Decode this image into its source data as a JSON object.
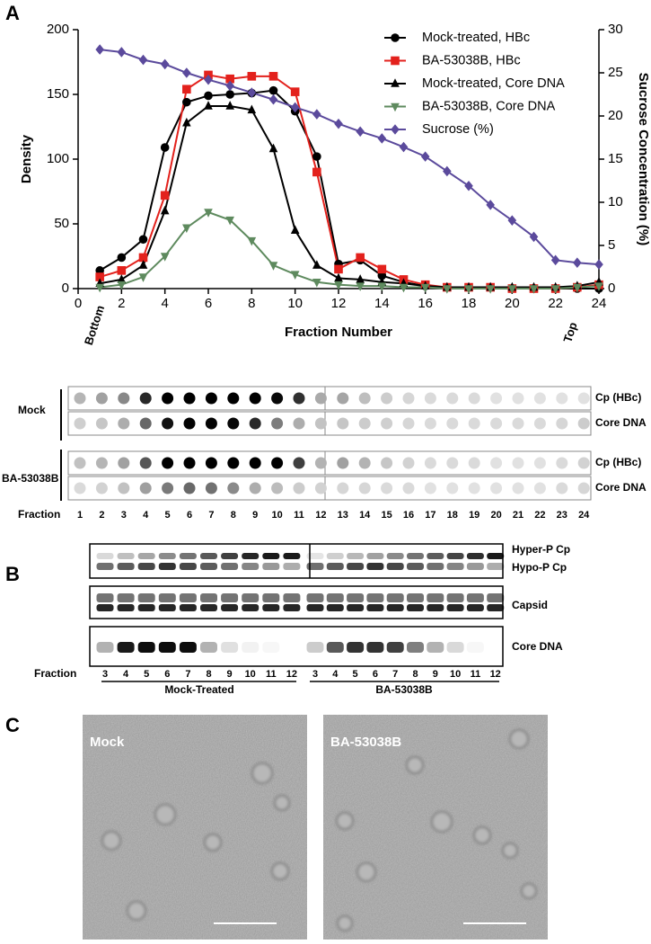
{
  "chart_data": {
    "type": "line",
    "x_label": "Fraction Number",
    "y_label": "Density",
    "y2_label": "Sucrose Concentration (%)",
    "annotations": [
      "Bottom",
      "Top"
    ],
    "x": [
      1,
      2,
      3,
      4,
      5,
      6,
      7,
      8,
      9,
      10,
      11,
      12,
      13,
      14,
      15,
      16,
      17,
      18,
      19,
      20,
      21,
      22,
      23,
      24
    ],
    "xlim": [
      0,
      24
    ],
    "xticks": [
      0,
      2,
      4,
      6,
      8,
      10,
      12,
      14,
      16,
      18,
      20,
      22,
      24
    ],
    "ylim": [
      0,
      200
    ],
    "yticks": [
      0,
      50,
      100,
      150,
      200
    ],
    "y2lim": [
      0,
      30
    ],
    "y2ticks": [
      0,
      5,
      10,
      15,
      20,
      25,
      30
    ],
    "legend": "upper right",
    "series": [
      {
        "name": "Mock-treated, HBc",
        "color": "#000000",
        "marker": "circle",
        "values": [
          14,
          24,
          38,
          109,
          144,
          149,
          150,
          151,
          153,
          137,
          102,
          19,
          22,
          10,
          5,
          2,
          1,
          1,
          1,
          0,
          0,
          0,
          0,
          0
        ]
      },
      {
        "name": "BA-53038B, HBc",
        "color": "#e3211c",
        "marker": "square",
        "values": [
          9,
          14,
          24,
          72,
          154,
          165,
          162,
          164,
          164,
          152,
          90,
          15,
          24,
          15,
          7,
          3,
          1,
          1,
          1,
          0,
          0,
          0,
          1,
          3
        ]
      },
      {
        "name": "Mock-treated, Core DNA",
        "color": "#000000",
        "marker": "triangle",
        "values": [
          4,
          7,
          18,
          60,
          128,
          141,
          141,
          138,
          108,
          45,
          18,
          8,
          7,
          5,
          4,
          2,
          1,
          1,
          1,
          1,
          1,
          1,
          2,
          5
        ]
      },
      {
        "name": "BA-53038B, Core DNA",
        "color": "#5e8a5e",
        "marker": "triangle-down",
        "values": [
          1,
          3,
          9,
          25,
          47,
          59,
          53,
          37,
          18,
          11,
          5,
          3,
          2,
          2,
          1,
          1,
          0,
          0,
          0,
          0,
          0,
          0,
          1,
          2
        ]
      },
      {
        "name": "Sucrose (%)",
        "color": "#5b4a9c",
        "marker": "diamond",
        "axis": "y2",
        "values": [
          27.7,
          27.4,
          26.5,
          26.0,
          25.0,
          24.2,
          23.5,
          22.7,
          21.9,
          21.0,
          20.2,
          19.1,
          18.2,
          17.4,
          16.4,
          15.3,
          13.6,
          11.9,
          9.7,
          7.9,
          6.0,
          3.3,
          3.0,
          2.8
        ]
      }
    ]
  },
  "panels": [
    "A",
    "B",
    "C"
  ],
  "dot_blot": {
    "groups": [
      "Mock",
      "BA-53038B"
    ],
    "rows": [
      "Cp (HBc)",
      "Core DNA",
      "Cp (HBc)",
      "Core DNA"
    ],
    "x_label": "Fraction",
    "fractions": [
      "1",
      "2",
      "3",
      "4",
      "5",
      "6",
      "7",
      "8",
      "9",
      "10",
      "11",
      "12",
      "13",
      "14",
      "15",
      "16",
      "17",
      "18",
      "19",
      "20",
      "21",
      "22",
      "23",
      "24"
    ]
  },
  "western": {
    "labels": [
      "Hyper-P Cp",
      "Hypo-P Cp",
      "Capsid",
      "Core DNA"
    ],
    "x_label": "Fraction",
    "lanes_mock": [
      "3",
      "4",
      "5",
      "6",
      "7",
      "8",
      "9",
      "10",
      "11",
      "12"
    ],
    "lanes_ba": [
      "3",
      "4",
      "5",
      "6",
      "7",
      "8",
      "9",
      "10",
      "11",
      "12"
    ],
    "groups": [
      "Mock-Treated",
      "BA-53038B"
    ]
  },
  "em": {
    "labels": [
      "Mock",
      "BA-53038B"
    ]
  }
}
